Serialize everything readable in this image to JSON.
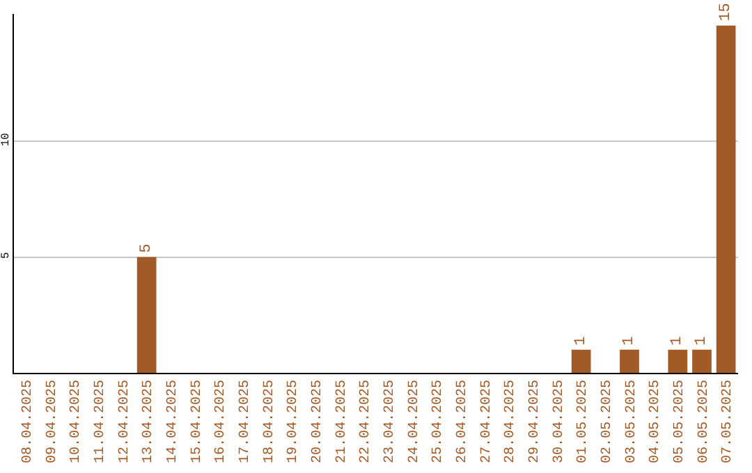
{
  "chart_data": {
    "type": "bar",
    "categories": [
      "08.04.2025",
      "09.04.2025",
      "10.04.2025",
      "11.04.2025",
      "12.04.2025",
      "13.04.2025",
      "14.04.2025",
      "15.04.2025",
      "16.04.2025",
      "17.04.2025",
      "18.04.2025",
      "19.04.2025",
      "20.04.2025",
      "21.04.2025",
      "22.04.2025",
      "23.04.2025",
      "24.04.2025",
      "25.04.2025",
      "26.04.2025",
      "27.04.2025",
      "28.04.2025",
      "29.04.2025",
      "30.04.2025",
      "01.05.2025",
      "02.05.2025",
      "03.05.2025",
      "04.05.2025",
      "05.05.2025",
      "06.05.2025",
      "07.05.2025"
    ],
    "values": [
      0,
      0,
      0,
      0,
      0,
      5,
      0,
      0,
      0,
      0,
      0,
      0,
      0,
      0,
      0,
      0,
      0,
      0,
      0,
      0,
      0,
      0,
      0,
      1,
      0,
      1,
      0,
      1,
      1,
      15
    ],
    "value_labels": [
      null,
      null,
      null,
      null,
      null,
      "5",
      null,
      null,
      null,
      null,
      null,
      null,
      null,
      null,
      null,
      null,
      null,
      null,
      null,
      null,
      null,
      null,
      null,
      "1",
      null,
      "1",
      null,
      "1",
      "1",
      "15"
    ],
    "color": "#a25a27",
    "ylim": [
      0,
      15.5
    ],
    "yticks": [
      5,
      10
    ],
    "grid": "y"
  }
}
